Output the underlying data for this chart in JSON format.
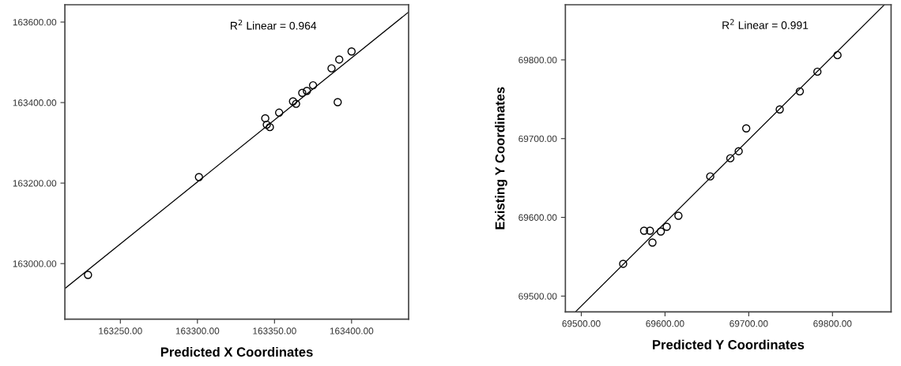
{
  "chart_data": [
    {
      "type": "scatter",
      "xlabel": "Predicted X Coordinates",
      "annotations": [
        "R$^{2}$ Linear = 0.964"
      ],
      "grid": false,
      "xlim": [
        163214,
        163437
      ],
      "ylim": [
        162862,
        163643
      ],
      "xticks": [
        {
          "value": 163250,
          "label": "163250.00"
        },
        {
          "value": 163300,
          "label": "163300.00"
        },
        {
          "value": 163350,
          "label": "163350.00"
        },
        {
          "value": 163400,
          "label": "163400.00"
        }
      ],
      "yticks": [
        {
          "value": 163000,
          "label": "163000.00"
        },
        {
          "value": 163200,
          "label": "163200.00"
        },
        {
          "value": 163400,
          "label": "163400.00"
        },
        {
          "value": 163600,
          "label": "163600.00"
        }
      ],
      "series": [
        {
          "marker": "circle",
          "color": "#000000",
          "x": [
            163229,
            163301,
            163344,
            163345,
            163347,
            163353,
            163362,
            163364,
            163368,
            163371,
            163375,
            163387,
            163392,
            163400,
            163391
          ],
          "values": [
            162972,
            163215,
            163361,
            163345,
            163339,
            163375,
            163403,
            163397,
            163424,
            163429,
            163443,
            163485,
            163507,
            163527,
            163401
          ]
        },
        {
          "type": "line",
          "color": "#000000",
          "x": [
            163214,
            163437
          ],
          "values": [
            162938,
            163625
          ]
        }
      ]
    },
    {
      "type": "scatter",
      "xlabel": "Predicted Y Coordinates",
      "ylabel": "Existing Y Coordinates",
      "annotations": [
        "R$^{2}$ Linear = 0.991"
      ],
      "grid": false,
      "xlim": [
        69481,
        69870
      ],
      "ylim": [
        69480,
        69870
      ],
      "xticks": [
        {
          "value": 69500,
          "label": "69500.00"
        },
        {
          "value": 69600,
          "label": "69600.00"
        },
        {
          "value": 69700,
          "label": "69700.00"
        },
        {
          "value": 69800,
          "label": "69800.00"
        }
      ],
      "yticks": [
        {
          "value": 69500,
          "label": "69500.00"
        },
        {
          "value": 69600,
          "label": "69600.00"
        },
        {
          "value": 69700,
          "label": "69700.00"
        },
        {
          "value": 69800,
          "label": "69800.00"
        }
      ],
      "series": [
        {
          "marker": "circle",
          "color": "#000000",
          "x": [
            69550,
            69575,
            69582,
            69585,
            69595,
            69602,
            69616,
            69654,
            69678,
            69688,
            69697,
            69737,
            69761,
            69782,
            69806
          ],
          "values": [
            69541,
            69583,
            69583,
            69568,
            69582,
            69588,
            69602,
            69652,
            69675,
            69684,
            69713,
            69737,
            69760,
            69785,
            69806
          ]
        },
        {
          "type": "line",
          "color": "#000000",
          "x": [
            69493,
            69862
          ],
          "values": [
            69480,
            69870
          ]
        }
      ]
    }
  ]
}
